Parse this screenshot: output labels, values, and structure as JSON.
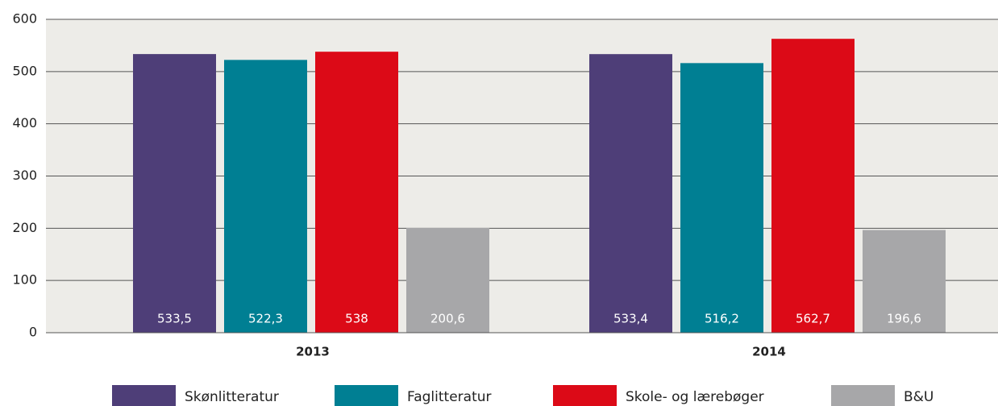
{
  "chart_data": {
    "type": "bar",
    "categories": [
      "2013",
      "2014"
    ],
    "series": [
      {
        "name": "Skønlitteratur",
        "color": "#4e3e78",
        "values": [
          533.5,
          533.4
        ],
        "value_labels": [
          "533,5",
          "533,4"
        ]
      },
      {
        "name": "Faglitteratur",
        "color": "#007f93",
        "values": [
          522.3,
          516.2
        ],
        "value_labels": [
          "522,3",
          "516,2"
        ]
      },
      {
        "name": "Skole- og lærebøger",
        "color": "#dc0a17",
        "values": [
          538,
          562.7
        ],
        "value_labels": [
          "538",
          "562,7"
        ]
      },
      {
        "name": "B&U",
        "color": "#a7a7a9",
        "values": [
          200.6,
          196.6
        ],
        "value_labels": [
          "200,6",
          "196,6"
        ]
      }
    ],
    "ylim": [
      0,
      600
    ],
    "yticks": [
      0,
      100,
      200,
      300,
      400,
      500,
      600
    ],
    "grid": true
  }
}
